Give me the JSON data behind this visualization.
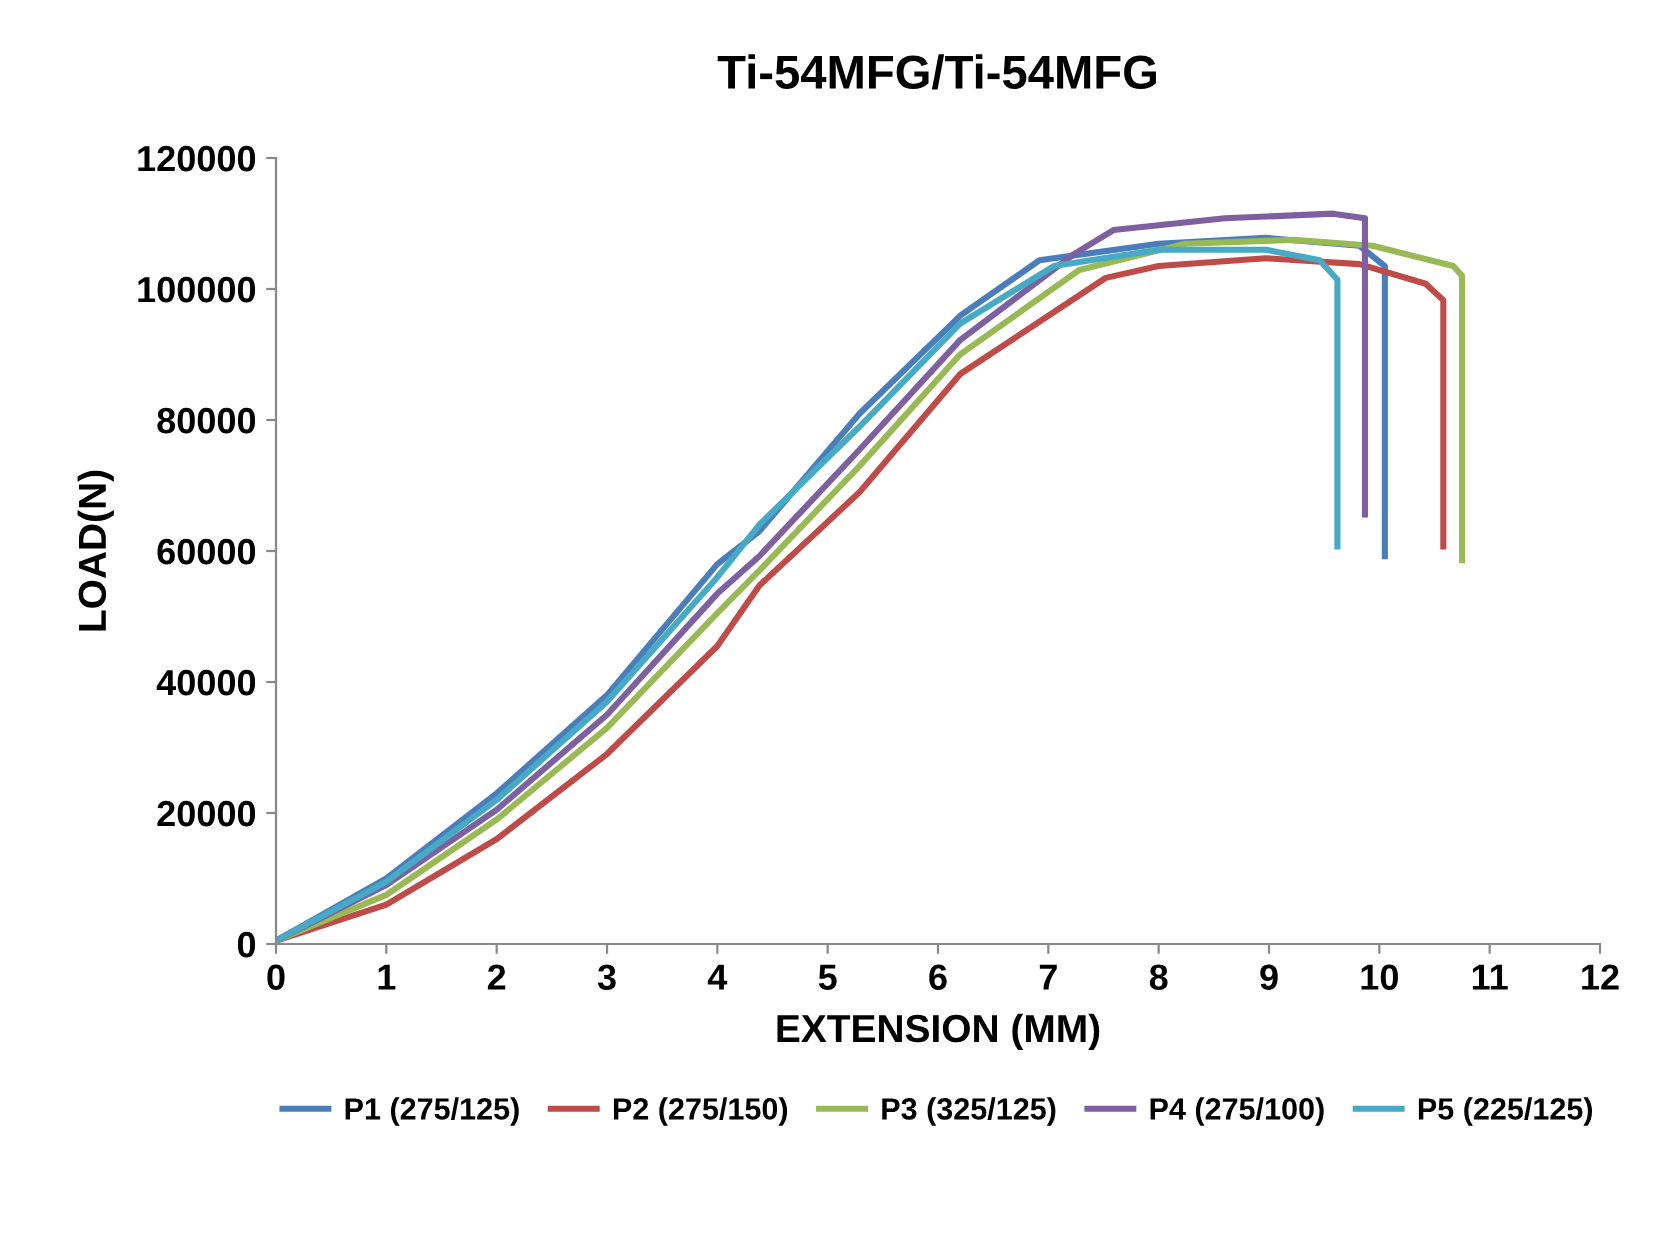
{
  "chart_data": {
    "type": "line",
    "title": "Ti-54MFG/Ti-54MFG",
    "xlabel": "EXTENSION (MM)",
    "ylabel": "LOAD(N)",
    "xlim": [
      0,
      12
    ],
    "xticks": [
      0,
      1,
      2,
      3,
      4,
      5,
      6,
      7,
      8,
      9,
      10,
      11,
      12
    ],
    "ylim": [
      0,
      120000
    ],
    "yticks": [
      0,
      20000,
      40000,
      60000,
      80000,
      100000,
      120000
    ],
    "grid": false,
    "legend": "bottom",
    "marker": "none",
    "line_style": "solid",
    "series": [
      {
        "name": "P1 (275/125)",
        "color": "#4a7ebb",
        "x": [
          0,
          1,
          2,
          3,
          4,
          4.38,
          5.29,
          6.2,
          6.92,
          8.0,
          8.97,
          9.82,
          10.05,
          10.05
        ],
        "values": [
          500,
          10000,
          23000,
          38000,
          58000,
          63000,
          81000,
          95900,
          104400,
          106900,
          107800,
          106600,
          103500,
          59200
        ]
      },
      {
        "name": "P2 (275/150)",
        "color": "#be4b48",
        "x": [
          0,
          1,
          2,
          3,
          4,
          4.38,
          5.29,
          6.2,
          7.52,
          8.0,
          8.97,
          9.82,
          10.42,
          10.58,
          10.58
        ],
        "values": [
          500,
          6000,
          16000,
          29000,
          45500,
          54700,
          69000,
          87000,
          101700,
          103500,
          104700,
          103800,
          100800,
          98300,
          60700
        ]
      },
      {
        "name": "P3 (325/125)",
        "color": "#98b954",
        "x": [
          0,
          1,
          2,
          3,
          4,
          4.38,
          5.29,
          6.2,
          7.28,
          8.24,
          9.22,
          9.94,
          10.67,
          10.75,
          10.75
        ],
        "values": [
          500,
          7500,
          19000,
          33000,
          50500,
          57000,
          73000,
          90000,
          102900,
          106900,
          107500,
          106600,
          103500,
          102000,
          58600
        ]
      },
      {
        "name": "P4 (275/100)",
        "color": "#7d60a0",
        "x": [
          0,
          1,
          2,
          3,
          4,
          4.38,
          5.29,
          6.2,
          7.23,
          7.59,
          8.6,
          9.58,
          9.87,
          9.87
        ],
        "values": [
          500,
          9000,
          20500,
          35000,
          53500,
          59200,
          75500,
          92200,
          105300,
          109000,
          110800,
          111500,
          110800,
          65600
        ]
      },
      {
        "name": "P5 (225/125)",
        "color": "#46aac5",
        "x": [
          0,
          1,
          2,
          3,
          4,
          4.38,
          5.29,
          6.2,
          7.05,
          8.0,
          8.97,
          9.46,
          9.62,
          9.62
        ],
        "values": [
          500,
          9500,
          22000,
          37000,
          56000,
          64000,
          79000,
          94700,
          103500,
          106000,
          106000,
          104400,
          101400,
          60700
        ]
      }
    ]
  }
}
